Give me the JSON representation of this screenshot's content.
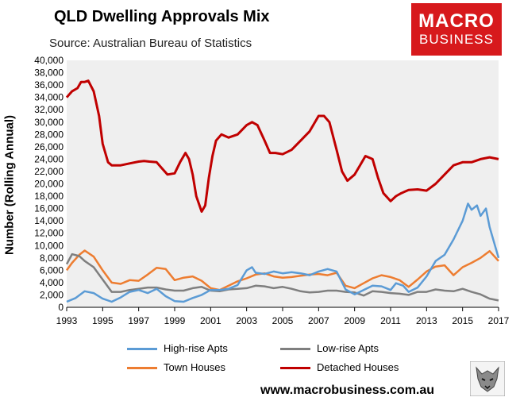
{
  "title": "QLD Dwelling Approvals Mix",
  "source": "Source: Australian Bureau of Statistics",
  "logo": {
    "line1": "MACRO",
    "line2": "BUSINESS"
  },
  "url": "www.macrobusiness.com.au",
  "chart_data": {
    "type": "line",
    "title": "QLD Dwelling Approvals Mix",
    "xlabel": "",
    "ylabel": "Number (Rolling Annual)",
    "xlim": [
      1993,
      2017
    ],
    "ylim": [
      0,
      40000
    ],
    "yticks": [
      0,
      2000,
      4000,
      6000,
      8000,
      10000,
      12000,
      14000,
      16000,
      18000,
      20000,
      22000,
      24000,
      26000,
      28000,
      30000,
      32000,
      34000,
      36000,
      38000,
      40000
    ],
    "ytick_labels": [
      "0",
      "2,000",
      "4,000",
      "6,000",
      "8,000",
      "10,000",
      "12,000",
      "14,000",
      "16,000",
      "18,000",
      "20,000",
      "22,000",
      "24,000",
      "26,000",
      "28,000",
      "30,000",
      "32,000",
      "34,000",
      "36,000",
      "38,000",
      "40,000"
    ],
    "xticks": [
      1993,
      1995,
      1997,
      1999,
      2001,
      2003,
      2005,
      2007,
      2009,
      2011,
      2013,
      2015,
      2017
    ],
    "xtick_labels": [
      "1993",
      "1995",
      "1997",
      "1999",
      "2001",
      "2003",
      "2005",
      "2007",
      "2009",
      "2011",
      "2013",
      "2015",
      "2017"
    ],
    "grid": false,
    "legend_position": "bottom",
    "series": [
      {
        "name": "High-rise Apts",
        "color": "#5b9bd5",
        "x": [
          1993,
          1993.5,
          1994,
          1994.5,
          1995,
          1995.5,
          1996,
          1996.5,
          1997,
          1997.5,
          1998,
          1998.5,
          1999,
          1999.5,
          2000,
          2000.5,
          2001,
          2001.5,
          2002,
          2002.5,
          2003,
          2003.3,
          2003.5,
          2004,
          2004.5,
          2005,
          2005.5,
          2006,
          2006.5,
          2007,
          2007.5,
          2008,
          2008.5,
          2009,
          2009.5,
          2010,
          2010.5,
          2011,
          2011.3,
          2011.7,
          2012,
          2012.5,
          2013,
          2013.5,
          2014,
          2014.5,
          2015,
          2015.3,
          2015.5,
          2015.8,
          2016,
          2016.3,
          2016.5,
          2016.8,
          2017
        ],
        "y": [
          900,
          1500,
          2600,
          2300,
          1400,
          900,
          1600,
          2500,
          2800,
          2300,
          3000,
          1800,
          1000,
          900,
          1500,
          2000,
          2800,
          2800,
          3000,
          3600,
          6000,
          6500,
          5600,
          5400,
          5800,
          5500,
          5700,
          5500,
          5200,
          5800,
          6200,
          5800,
          2900,
          2100,
          2800,
          3500,
          3400,
          2800,
          3900,
          3500,
          2500,
          3200,
          5000,
          7500,
          8500,
          11000,
          14000,
          16800,
          15800,
          16500,
          14800,
          16000,
          13000,
          10000,
          8000
        ]
      },
      {
        "name": "Low-rise Apts",
        "color": "#7f7f7f",
        "x": [
          1993,
          1993.3,
          1993.7,
          1994,
          1994.5,
          1995,
          1995.5,
          1996,
          1996.5,
          1997,
          1997.5,
          1998,
          1998.5,
          1999,
          1999.5,
          2000,
          2000.5,
          2001,
          2001.5,
          2002,
          2002.5,
          2003,
          2003.5,
          2004,
          2004.5,
          2005,
          2005.5,
          2006,
          2006.5,
          2007,
          2007.5,
          2008,
          2008.5,
          2009,
          2009.5,
          2010,
          2010.5,
          2011,
          2011.5,
          2012,
          2012.5,
          2013,
          2013.5,
          2014,
          2014.5,
          2015,
          2015.5,
          2016,
          2016.5,
          2017
        ],
        "y": [
          7000,
          8600,
          8300,
          7500,
          6500,
          4500,
          2500,
          2500,
          2800,
          3000,
          3200,
          3200,
          2900,
          2700,
          2700,
          3100,
          3300,
          2700,
          2600,
          2900,
          3000,
          3100,
          3500,
          3400,
          3100,
          3300,
          3000,
          2600,
          2400,
          2500,
          2700,
          2700,
          2500,
          2400,
          1900,
          2600,
          2500,
          2300,
          2200,
          2000,
          2500,
          2500,
          2900,
          2700,
          2600,
          3000,
          2500,
          2100,
          1400,
          1100
        ]
      },
      {
        "name": "Town Houses",
        "color": "#ed7d31",
        "x": [
          1993,
          1993.3,
          1993.7,
          1994,
          1994.5,
          1995,
          1995.5,
          1996,
          1996.5,
          1997,
          1997.5,
          1998,
          1998.5,
          1999,
          1999.5,
          2000,
          2000.5,
          2001,
          2001.5,
          2002,
          2002.5,
          2003,
          2003.5,
          2004,
          2004.5,
          2005,
          2005.5,
          2006,
          2006.5,
          2007,
          2007.5,
          2008,
          2008.5,
          2009,
          2009.5,
          2010,
          2010.5,
          2011,
          2011.5,
          2012,
          2012.5,
          2013,
          2013.5,
          2014,
          2014.5,
          2015,
          2015.5,
          2016,
          2016.5,
          2017
        ],
        "y": [
          6000,
          7200,
          8500,
          9200,
          8200,
          6000,
          4000,
          3800,
          4400,
          4300,
          5300,
          6400,
          6200,
          4400,
          4800,
          5000,
          4300,
          3100,
          2800,
          3500,
          4200,
          4700,
          5300,
          5500,
          5000,
          4800,
          4900,
          5100,
          5300,
          5400,
          5200,
          5600,
          3500,
          3100,
          3900,
          4700,
          5200,
          4900,
          4400,
          3300,
          4500,
          5800,
          6600,
          6800,
          5200,
          6500,
          7200,
          8000,
          9100,
          7500
        ]
      },
      {
        "name": "Detached Houses",
        "color": "#c00000",
        "x": [
          1993,
          1993.3,
          1993.6,
          1993.8,
          1994,
          1994.2,
          1994.5,
          1994.8,
          1995,
          1995.3,
          1995.5,
          1996,
          1996.5,
          1997,
          1997.3,
          1997.6,
          1998,
          1998.3,
          1998.6,
          1999,
          1999.3,
          1999.6,
          1999.8,
          2000,
          2000.2,
          2000.5,
          2000.7,
          2000.9,
          2001.1,
          2001.3,
          2001.6,
          2002,
          2002.5,
          2003,
          2003.3,
          2003.6,
          2004,
          2004.3,
          2004.6,
          2005,
          2005.5,
          2006,
          2006.5,
          2007,
          2007.3,
          2007.6,
          2008,
          2008.3,
          2008.6,
          2009,
          2009.3,
          2009.6,
          2010,
          2010.3,
          2010.6,
          2011,
          2011.3,
          2011.6,
          2012,
          2012.5,
          2013,
          2013.5,
          2014,
          2014.5,
          2015,
          2015.5,
          2016,
          2016.5,
          2017
        ],
        "y": [
          34000,
          35000,
          35500,
          36500,
          36500,
          36700,
          35000,
          31000,
          26500,
          23500,
          23000,
          23000,
          23300,
          23600,
          23700,
          23600,
          23500,
          22500,
          21500,
          21700,
          23500,
          25000,
          24000,
          21500,
          18000,
          15500,
          16500,
          21000,
          24500,
          27000,
          28000,
          27500,
          28000,
          29500,
          30000,
          29500,
          27000,
          25000,
          25000,
          24800,
          25500,
          27000,
          28500,
          31000,
          31000,
          30000,
          25500,
          22000,
          20500,
          21500,
          23000,
          24500,
          24000,
          21000,
          18500,
          17200,
          18000,
          18500,
          19000,
          19100,
          18900,
          20000,
          21500,
          23000,
          23500,
          23500,
          24000,
          24300,
          24000
        ]
      }
    ]
  }
}
